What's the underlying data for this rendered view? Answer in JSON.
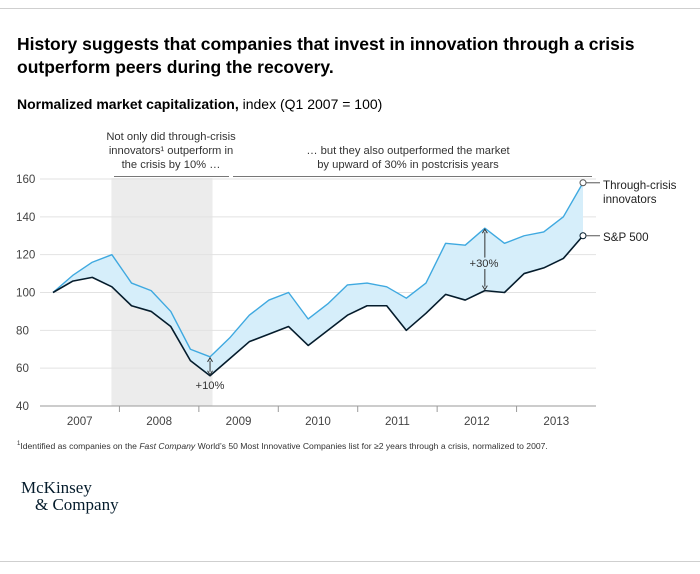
{
  "header": {
    "title": "History suggests that companies that invest in innovation through a crisis outperform peers during the recovery.",
    "subtitle_bold": "Normalized market capitalization,",
    "subtitle_rest": " index (Q1 2007 = 100)"
  },
  "annotations": {
    "crisis_note": [
      "Not only did through-crisis",
      "innovators¹ outperform in",
      "the crisis by 10% …"
    ],
    "postcrisis_note": [
      "… but they also outperformed the market",
      "by upward of 30% in postcrisis years"
    ],
    "gap_crisis": "+10%",
    "gap_postcrisis": "+30%"
  },
  "chart_data": {
    "type": "line",
    "x_labels": [
      "2007",
      "2008",
      "2009",
      "2010",
      "2011",
      "2012",
      "2013"
    ],
    "quarters": [
      "Q1 2007",
      "Q2 2007",
      "Q3 2007",
      "Q4 2007",
      "Q1 2008",
      "Q2 2008",
      "Q3 2008",
      "Q4 2008",
      "Q1 2009",
      "Q2 2009",
      "Q3 2009",
      "Q4 2009",
      "Q1 2010",
      "Q2 2010",
      "Q3 2010",
      "Q4 2010",
      "Q1 2011",
      "Q2 2011",
      "Q3 2011",
      "Q4 2011",
      "Q1 2012",
      "Q2 2012",
      "Q3 2012",
      "Q4 2012",
      "Q1 2013",
      "Q2 2013",
      "Q3 2013",
      "Q4 2013"
    ],
    "series": [
      {
        "name": "Through-crisis innovators",
        "color": "#3fa9e0",
        "values": [
          100,
          109,
          116,
          120,
          105,
          101,
          90,
          70,
          66,
          76,
          88,
          96,
          100,
          86,
          94,
          104,
          105,
          103,
          97,
          105,
          126,
          125,
          134,
          126,
          130,
          132,
          140,
          158
        ]
      },
      {
        "name": "S&P 500",
        "color": "#051c2c",
        "values": [
          100,
          106,
          108,
          103,
          93,
          90,
          82,
          64,
          56,
          65,
          74,
          78,
          82,
          72,
          80,
          88,
          93,
          93,
          80,
          89,
          99,
          96,
          101,
          100,
          110,
          113,
          118,
          130
        ]
      }
    ],
    "series_labels": [
      "Through-crisis",
      "innovators",
      "S&P 500"
    ],
    "y_ticks": [
      40,
      60,
      80,
      100,
      120,
      140,
      160
    ],
    "ylim": [
      40,
      165
    ],
    "shaded_region": {
      "from": "Q4 2007",
      "to": "Q1 2009",
      "label": "crisis"
    },
    "fill_color": "#d6eefa",
    "grid": true
  },
  "footnote": {
    "marker": "1",
    "before": "Identified as companies on the ",
    "italic": "Fast Company",
    "after": " World’s 50 Most Innovative Companies list for ≥2 years through a crisis, normalized to 2007."
  },
  "logo": {
    "line1": "McKinsey",
    "line2": "& Company"
  }
}
